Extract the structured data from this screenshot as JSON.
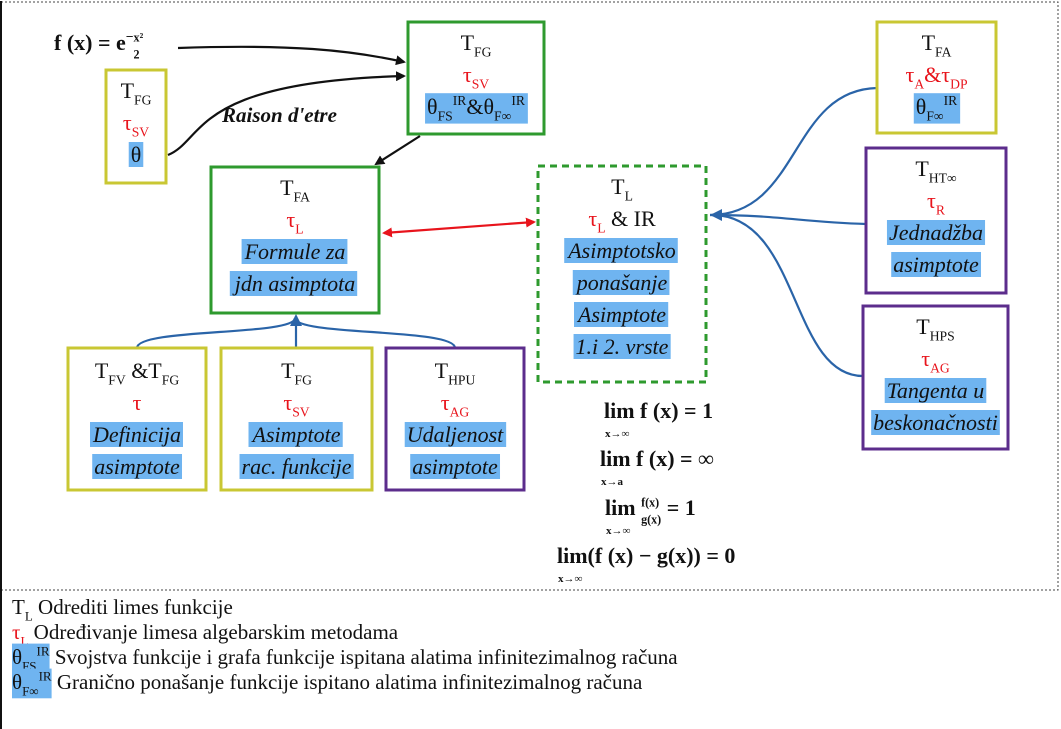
{
  "formula": {
    "segs": [
      {
        "text": "f (x) = e"
      },
      {
        "text": "−",
        "sup": true
      },
      {
        "num": "x²",
        "den": "2"
      }
    ]
  },
  "caption": "Raison d'etre",
  "nodes": [
    {
      "border": "#2e9a2e",
      "lines": [
        {
          "segs": [
            {
              "text": "T"
            },
            {
              "text": "FG",
              "sub": true
            }
          ]
        },
        {
          "segs": [
            {
              "text": "τ",
              "color": "#e8141c"
            },
            {
              "text": "SV",
              "sub": true,
              "color": "#e8141c"
            }
          ]
        },
        {
          "highlight": true,
          "segs": [
            {
              "text": "θ"
            },
            {
              "text": "FS",
              "sub": true
            },
            {
              "text": "IR",
              "sup": true
            },
            {
              "text": "&θ"
            },
            {
              "text": "F∞",
              "sub": true
            },
            {
              "text": "IR",
              "sup": true
            }
          ]
        }
      ]
    },
    {
      "border": "#c9c733",
      "lines": [
        {
          "segs": [
            {
              "text": "T"
            },
            {
              "text": "FG",
              "sub": true
            }
          ]
        },
        {
          "segs": [
            {
              "text": "τ",
              "color": "#e8141c"
            },
            {
              "text": "SV",
              "sub": true,
              "color": "#e8141c"
            }
          ]
        },
        {
          "highlight": true,
          "segs": [
            {
              "text": "θ"
            }
          ]
        }
      ]
    },
    {
      "border": "#2e9a2e",
      "lines": [
        {
          "segs": [
            {
              "text": "T"
            },
            {
              "text": "FA",
              "sub": true
            }
          ]
        },
        {
          "segs": [
            {
              "text": "τ",
              "color": "#e8141c"
            },
            {
              "text": "L",
              "sub": true,
              "color": "#e8141c"
            }
          ]
        },
        {
          "highlight": true,
          "italic": true,
          "segs": [
            {
              "text": "Formule za"
            }
          ]
        },
        {
          "highlight": true,
          "italic": true,
          "segs": [
            {
              "text": "jdn asimptota"
            }
          ]
        }
      ]
    },
    {
      "border": "#2e9a2e",
      "dashed": true,
      "lines": [
        {
          "segs": [
            {
              "text": "T"
            },
            {
              "text": "L",
              "sub": true
            }
          ]
        },
        {
          "segs": [
            {
              "text": "τ",
              "color": "#e8141c"
            },
            {
              "text": "L",
              "sub": true,
              "color": "#e8141c"
            },
            {
              "text": " & IR"
            }
          ]
        },
        {
          "highlight": true,
          "italic": true,
          "segs": [
            {
              "text": "Asimptotsko"
            }
          ]
        },
        {
          "highlight": true,
          "italic": true,
          "segs": [
            {
              "text": "ponašanje"
            }
          ]
        },
        {
          "highlight": true,
          "italic": true,
          "segs": [
            {
              "text": "Asimptote"
            }
          ]
        },
        {
          "highlight": true,
          "italic": true,
          "segs": [
            {
              "text": "1.i 2. vrste"
            }
          ]
        }
      ]
    },
    {
      "border": "#c9c733",
      "lines": [
        {
          "segs": [
            {
              "text": "T"
            },
            {
              "text": "FA",
              "sub": true
            }
          ]
        },
        {
          "segs": [
            {
              "text": "τ",
              "color": "#e8141c"
            },
            {
              "text": "A",
              "sub": true,
              "color": "#e8141c"
            },
            {
              "text": "&τ",
              "color": "#e8141c"
            },
            {
              "text": "DP",
              "sub": true,
              "color": "#e8141c"
            }
          ]
        },
        {
          "highlight": true,
          "segs": [
            {
              "text": "θ"
            },
            {
              "text": "F∞",
              "sub": true
            },
            {
              "text": "IR",
              "sup": true
            }
          ]
        }
      ]
    },
    {
      "border": "#5c2d8c",
      "lines": [
        {
          "segs": [
            {
              "text": "T"
            },
            {
              "text": "HT∞",
              "sub": true
            }
          ]
        },
        {
          "segs": [
            {
              "text": "τ",
              "color": "#e8141c"
            },
            {
              "text": "R",
              "sub": true,
              "color": "#e8141c"
            }
          ]
        },
        {
          "highlight": true,
          "italic": true,
          "segs": [
            {
              "text": "Jednadžba"
            }
          ]
        },
        {
          "highlight": true,
          "italic": true,
          "segs": [
            {
              "text": "asimptote"
            }
          ]
        }
      ]
    },
    {
      "border": "#5c2d8c",
      "lines": [
        {
          "segs": [
            {
              "text": "T"
            },
            {
              "text": "HPS",
              "sub": true
            }
          ]
        },
        {
          "segs": [
            {
              "text": "τ",
              "color": "#e8141c"
            },
            {
              "text": "AG",
              "sub": true,
              "color": "#e8141c"
            }
          ]
        },
        {
          "highlight": true,
          "italic": true,
          "segs": [
            {
              "text": "Tangenta u"
            }
          ]
        },
        {
          "highlight": true,
          "italic": true,
          "segs": [
            {
              "text": "beskonačnosti"
            }
          ]
        }
      ]
    },
    {
      "border": "#c9c733",
      "lines": [
        {
          "segs": [
            {
              "text": "T"
            },
            {
              "text": "FV",
              "sub": true
            },
            {
              "text": " &T"
            },
            {
              "text": "FG",
              "sub": true
            }
          ]
        },
        {
          "segs": [
            {
              "text": "τ",
              "color": "#e8141c"
            }
          ]
        },
        {
          "highlight": true,
          "italic": true,
          "segs": [
            {
              "text": "Definicija"
            }
          ]
        },
        {
          "highlight": true,
          "italic": true,
          "segs": [
            {
              "text": "asimptote"
            }
          ]
        }
      ]
    },
    {
      "border": "#c9c733",
      "lines": [
        {
          "segs": [
            {
              "text": "T"
            },
            {
              "text": "FG",
              "sub": true
            }
          ]
        },
        {
          "segs": [
            {
              "text": "τ",
              "color": "#e8141c"
            },
            {
              "text": "SV",
              "sub": true,
              "color": "#e8141c"
            }
          ]
        },
        {
          "highlight": true,
          "italic": true,
          "segs": [
            {
              "text": "Asimptote"
            }
          ]
        },
        {
          "highlight": true,
          "italic": true,
          "segs": [
            {
              "text": "rac. funkcije"
            }
          ]
        }
      ]
    },
    {
      "border": "#5c2d8c",
      "lines": [
        {
          "segs": [
            {
              "text": "T"
            },
            {
              "text": "HPU",
              "sub": true
            }
          ]
        },
        {
          "segs": [
            {
              "text": "τ",
              "color": "#e8141c"
            },
            {
              "text": "AG",
              "sub": true,
              "color": "#e8141c"
            }
          ]
        },
        {
          "highlight": true,
          "italic": true,
          "segs": [
            {
              "text": "Udaljenost"
            }
          ]
        },
        {
          "highlight": true,
          "italic": true,
          "segs": [
            {
              "text": "asimptote"
            }
          ]
        }
      ]
    }
  ],
  "limits": [
    {
      "under": "x→∞",
      "segs": [
        {
          "text": "lim f (x) = 1"
        }
      ]
    },
    {
      "under": "x→a",
      "segs": [
        {
          "text": "lim f (x) = ∞"
        }
      ]
    },
    {
      "under": "x→∞",
      "segs": [
        {
          "text": "lim "
        },
        {
          "num": "f(x)",
          "den": "g(x)"
        },
        {
          "text": " = 1"
        }
      ]
    },
    {
      "under": "x→∞",
      "segs": [
        {
          "text": "lim(f (x) − g(x)) = 0"
        }
      ]
    }
  ],
  "legend": [
    {
      "segs": [
        {
          "text": "T"
        },
        {
          "text": "L",
          "sub": true
        },
        {
          "text": " Odrediti limes funkcije"
        }
      ]
    },
    {
      "segs": [
        {
          "text": "τ",
          "color": "#e8141c"
        },
        {
          "text": "L",
          "sub": true,
          "color": "#e8141c"
        },
        {
          "text": " Određivanje limesa algebarskim metodama"
        }
      ]
    },
    {
      "segs": [
        {
          "text": "θ",
          "hl": true
        },
        {
          "text": "FS",
          "sub": true,
          "hl": true
        },
        {
          "text": "IR",
          "sup": true,
          "hl": true
        },
        {
          "text": " Svojstva funkcije i grafa funkcije ispitana alatima infinitezimalnog računa"
        }
      ]
    },
    {
      "segs": [
        {
          "text": "θ",
          "hl": true
        },
        {
          "text": "F∞",
          "sub": true,
          "hl": true
        },
        {
          "text": "IR",
          "sup": true,
          "hl": true
        },
        {
          "text": " Granično ponašanje funkcije ispitano alatima infinitezimalnog računa"
        }
      ]
    }
  ]
}
